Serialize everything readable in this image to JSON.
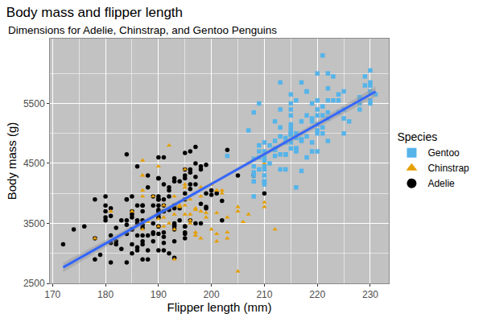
{
  "chart_data": {
    "type": "scatter",
    "title": "Body mass and flipper length",
    "subtitle": "Dimensions for Adelie, Chinstrap, and Gentoo Penguins",
    "x_label": "Flipper length (mm)",
    "y_label": "Body mass (g)",
    "legend_title": "Species",
    "legend": "right",
    "grid": true,
    "xlim": [
      169.5,
      233.5
    ],
    "xticks": [
      170,
      180,
      190,
      200,
      210,
      220,
      230
    ],
    "ylim": [
      2500,
      6580
    ],
    "yticks": [
      2500,
      3500,
      4500,
      5500
    ],
    "series": [
      {
        "name": "Adelie",
        "color": "#000000",
        "marker": "circle",
        "x": [
          181,
          186,
          195,
          193,
          190,
          181,
          195,
          193,
          190,
          186,
          180,
          182,
          191,
          198,
          185,
          195,
          197,
          184,
          194,
          174,
          180,
          189,
          185,
          180,
          187,
          183,
          187,
          172,
          180,
          178,
          178,
          188,
          184,
          195,
          196,
          190,
          180,
          181,
          184,
          182,
          195,
          186,
          196,
          185,
          190,
          182,
          179,
          190,
          191,
          186,
          188,
          190,
          200,
          187,
          191,
          186,
          193,
          181,
          194,
          185,
          195,
          185,
          192,
          184,
          192,
          195,
          188,
          190,
          198,
          190,
          190,
          196,
          197,
          190,
          195,
          191,
          184,
          187,
          195,
          189,
          196,
          187,
          193,
          191,
          194,
          190,
          189,
          189,
          190,
          202,
          205,
          185,
          186,
          187,
          208,
          190,
          196,
          178,
          192,
          192,
          203,
          183,
          190,
          193,
          184,
          199,
          190,
          181,
          197,
          198,
          191,
          193,
          197,
          191,
          196,
          188,
          199,
          189,
          189,
          187,
          198,
          176,
          202,
          186,
          199,
          191,
          195,
          191,
          210,
          190,
          197,
          193,
          199,
          187,
          190,
          191,
          200,
          185,
          193,
          193,
          187,
          188,
          190,
          192,
          185,
          190,
          184,
          195,
          193,
          187,
          201
        ],
        "values": [
          3750,
          3800,
          3250,
          3450,
          3650,
          3625,
          4675,
          3475,
          4250,
          3300,
          3700,
          3200,
          3800,
          4400,
          3700,
          3450,
          4500,
          3325,
          4200,
          3400,
          3600,
          3800,
          3950,
          3800,
          3800,
          3550,
          3200,
          3150,
          3950,
          3250,
          3900,
          3300,
          3900,
          3325,
          4150,
          3950,
          3550,
          3300,
          4650,
          3150,
          3900,
          3100,
          4400,
          3000,
          4600,
          3425,
          2975,
          3450,
          4150,
          3500,
          4300,
          3450,
          4050,
          2900,
          3700,
          3550,
          3800,
          2850,
          3750,
          3150,
          4400,
          3600,
          4050,
          2850,
          3950,
          3350,
          4100,
          3050,
          4450,
          3600,
          3900,
          3550,
          4150,
          3700,
          4250,
          3700,
          3900,
          3550,
          4000,
          3200,
          4700,
          3800,
          4200,
          3350,
          3550,
          3800,
          3500,
          3950,
          3600,
          3550,
          4300,
          3400,
          4450,
          3300,
          4300,
          3700,
          4350,
          2900,
          4100,
          3725,
          4725,
          3075,
          4250,
          2925,
          3550,
          3750,
          3900,
          3175,
          4775,
          3825,
          4600,
          3200,
          4275,
          3900,
          4075,
          2900,
          3775,
          3350,
          3325,
          3150,
          3500,
          3450,
          3875,
          3050,
          4000,
          3275,
          4300,
          3050,
          4000,
          3325,
          3500,
          3500,
          4475,
          3425,
          3900,
          3175,
          3975,
          3400,
          4250,
          3400,
          3475,
          3050,
          3725,
          3000,
          3650,
          4250,
          3475,
          3450,
          3750,
          3700,
          4000
        ]
      },
      {
        "name": "Chinstrap",
        "color": "#E69F00",
        "marker": "triangle",
        "x": [
          192,
          196,
          193,
          188,
          197,
          198,
          178,
          197,
          195,
          198,
          193,
          194,
          185,
          201,
          190,
          201,
          197,
          181,
          190,
          195,
          191,
          187,
          193,
          195,
          197,
          200,
          200,
          191,
          205,
          187,
          201,
          187,
          203,
          195,
          199,
          195,
          210,
          192,
          205,
          210,
          187,
          196,
          196,
          196,
          201,
          190,
          212,
          187,
          198,
          199,
          201,
          193,
          203,
          187,
          197,
          191,
          203,
          202,
          194,
          206,
          189,
          195,
          207,
          202,
          193,
          210,
          198,
          205
        ],
        "values": [
          3500,
          3900,
          3650,
          3525,
          3725,
          3950,
          3250,
          3750,
          4150,
          3700,
          3800,
          3775,
          3700,
          4050,
          3575,
          4050,
          3300,
          3700,
          3450,
          4400,
          3600,
          3400,
          2900,
          3800,
          3300,
          4150,
          3400,
          3800,
          3700,
          4550,
          3200,
          4300,
          3350,
          4100,
          3600,
          3900,
          3850,
          4800,
          2700,
          4500,
          3950,
          3650,
          3550,
          3500,
          3675,
          4450,
          3400,
          4300,
          3250,
          3675,
          3325,
          3950,
          3600,
          4050,
          3350,
          3450,
          3250,
          4050,
          3800,
          3525,
          3950,
          3650,
          3650,
          4000,
          3400,
          3775,
          4100,
          3775
        ]
      },
      {
        "name": "Gentoo",
        "color": "#56B4E9",
        "marker": "square",
        "x": [
          211,
          230,
          210,
          218,
          215,
          210,
          211,
          219,
          209,
          215,
          214,
          216,
          214,
          213,
          210,
          217,
          210,
          221,
          209,
          222,
          218,
          215,
          213,
          215,
          215,
          215,
          216,
          215,
          210,
          220,
          222,
          209,
          207,
          230,
          220,
          220,
          213,
          219,
          208,
          208,
          208,
          225,
          210,
          216,
          222,
          217,
          210,
          225,
          213,
          215,
          210,
          220,
          210,
          225,
          217,
          220,
          208,
          220,
          208,
          224,
          208,
          221,
          214,
          231,
          219,
          230,
          214,
          229,
          220,
          223,
          216,
          221,
          221,
          217,
          216,
          230,
          209,
          220,
          215,
          223,
          212,
          221,
          212,
          224,
          212,
          228,
          218,
          218,
          212,
          230,
          218,
          228,
          212,
          224,
          214,
          226,
          216,
          222,
          203,
          225,
          219,
          228,
          215,
          228,
          216,
          215,
          210,
          219,
          208,
          209,
          216,
          229,
          213,
          230,
          217,
          230,
          217,
          222,
          214,
          215,
          222,
          212,
          213
        ],
        "values": [
          4500,
          5700,
          4450,
          5700,
          5400,
          4550,
          4800,
          5200,
          4400,
          5150,
          4650,
          5550,
          4650,
          5850,
          4200,
          5850,
          4150,
          6300,
          4800,
          5350,
          5700,
          5000,
          4400,
          5050,
          5000,
          5100,
          4100,
          5650,
          4600,
          5550,
          5250,
          4700,
          5050,
          6050,
          5150,
          5400,
          4950,
          5250,
          4350,
          5350,
          3950,
          5700,
          4300,
          4750,
          5550,
          4900,
          4200,
          5400,
          5100,
          5300,
          4850,
          5300,
          4400,
          5000,
          4900,
          5050,
          4300,
          5000,
          4450,
          5550,
          4200,
          5300,
          4400,
          5650,
          4700,
          5700,
          4650,
          5800,
          4700,
          5550,
          4750,
          5000,
          5100,
          5200,
          4700,
          5800,
          4600,
          6000,
          4750,
          5950,
          4625,
          5450,
          4725,
          5350,
          4750,
          5600,
          4600,
          5300,
          4875,
          5550,
          4950,
          5400,
          4750,
          5650,
          4850,
          5200,
          4925,
          4875,
          4625,
          5250,
          4850,
          5600,
          4975,
          5500,
          4725,
          5500,
          4700,
          5500,
          4575,
          5500,
          5000,
          5950,
          4650,
          5500,
          4375,
          5850,
          4875,
          6000,
          4925,
          4850,
          5750,
          5200,
          5400
        ]
      }
    ],
    "trend": {
      "color": "#3366FF",
      "x": [
        172,
        186,
        201,
        216,
        231
      ],
      "values": [
        2766,
        3461,
        4208,
        4952,
        5698
      ],
      "lower": [
        2685,
        3416,
        4181,
        4907,
        5615
      ],
      "upper": [
        2847,
        3506,
        4235,
        4997,
        5781
      ]
    }
  }
}
